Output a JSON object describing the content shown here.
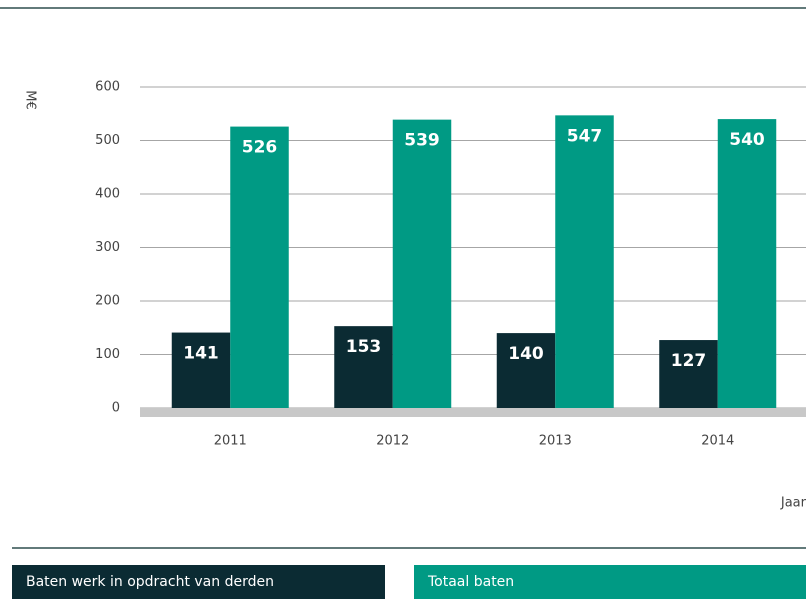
{
  "chart_data": {
    "type": "bar",
    "ylabel": "M€",
    "xlabel": "Jaar",
    "categories": [
      "2011",
      "2012",
      "2013",
      "2014"
    ],
    "series": [
      {
        "name": "Baten werk in opdracht van derden",
        "color": "#0b2b33",
        "values": [
          141,
          153,
          140,
          127
        ]
      },
      {
        "name": "Totaal baten",
        "color": "#009a84",
        "values": [
          526,
          539,
          547,
          540
        ]
      }
    ],
    "ylim": [
      0,
      600
    ],
    "yticks": [
      0,
      100,
      200,
      300,
      400,
      500,
      600
    ],
    "grid": true
  }
}
